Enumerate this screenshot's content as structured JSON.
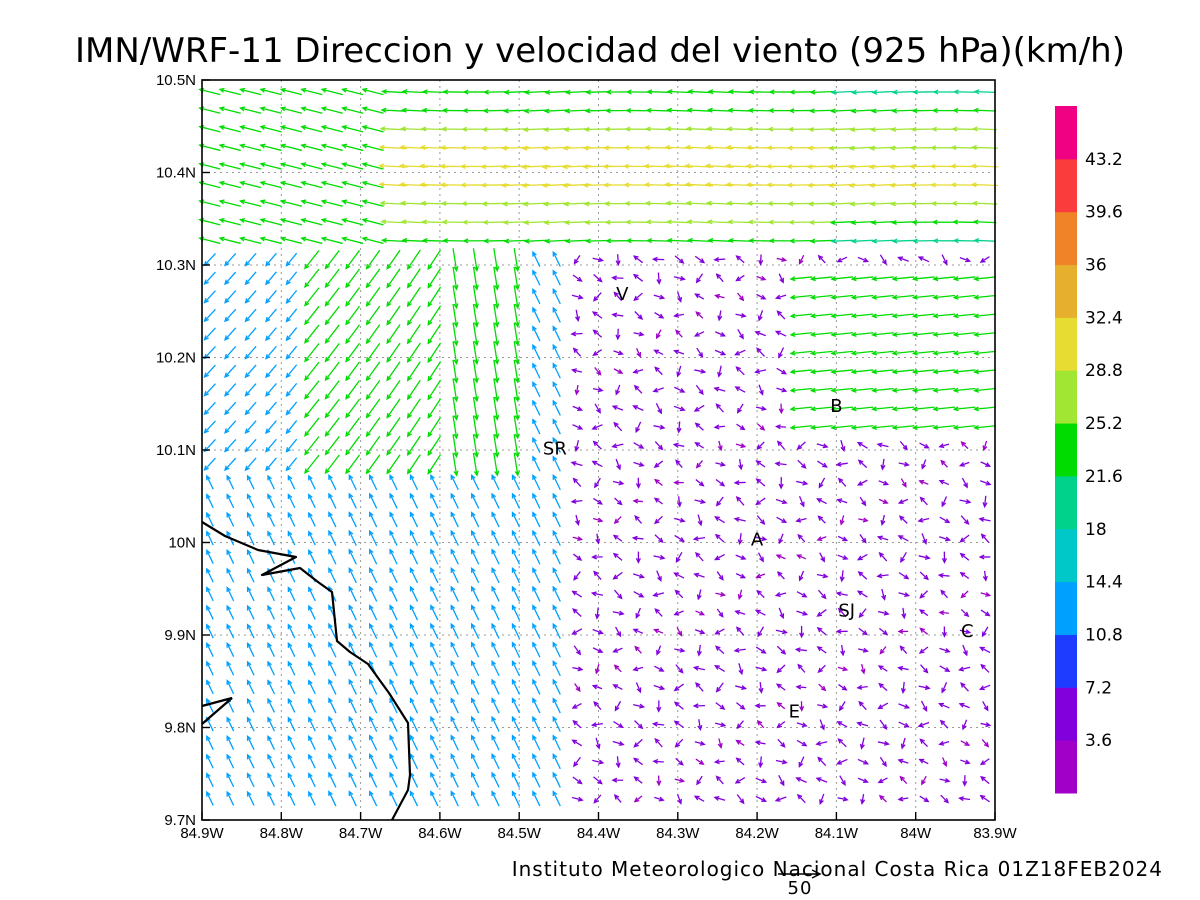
{
  "title": "IMN/WRF-11 Direccion y velocidad del viento (925 hPa)(km/h)",
  "footer": "Instituto Meteorologico Nacional Costa Rica 01Z18FEB2024",
  "reference_vector": {
    "label": "50",
    "speed_kmh": 50
  },
  "map": {
    "lon_range": [
      -84.9,
      -83.9
    ],
    "lat_range": [
      9.7,
      10.5
    ],
    "x_ticks": [
      {
        "lon": -84.9,
        "label": "84.9W"
      },
      {
        "lon": -84.8,
        "label": "84.8W"
      },
      {
        "lon": -84.7,
        "label": "84.7W"
      },
      {
        "lon": -84.6,
        "label": "84.6W"
      },
      {
        "lon": -84.5,
        "label": "84.5W"
      },
      {
        "lon": -84.4,
        "label": "84.4W"
      },
      {
        "lon": -84.3,
        "label": "84.3W"
      },
      {
        "lon": -84.2,
        "label": "84.2W"
      },
      {
        "lon": -84.1,
        "label": "84.1W"
      },
      {
        "lon": -84.0,
        "label": "84W"
      },
      {
        "lon": -83.9,
        "label": "83.9W"
      }
    ],
    "y_ticks": [
      {
        "lat": 9.7,
        "label": "9.7N"
      },
      {
        "lat": 9.8,
        "label": "9.8N"
      },
      {
        "lat": 9.9,
        "label": "9.9N"
      },
      {
        "lat": 10.0,
        "label": "10N"
      },
      {
        "lat": 10.1,
        "label": "10.1N"
      },
      {
        "lat": 10.2,
        "label": "10.2N"
      },
      {
        "lat": 10.3,
        "label": "10.3N"
      },
      {
        "lat": 10.4,
        "label": "10.4N"
      },
      {
        "lat": 10.5,
        "label": "10.5N"
      }
    ],
    "grid": true,
    "coastline_color": "#000000",
    "city_labels": [
      {
        "text": "V",
        "lon": -84.37,
        "lat": 10.262
      },
      {
        "text": "B",
        "lon": -84.1,
        "lat": 10.141
      },
      {
        "text": "SR",
        "lon": -84.455,
        "lat": 10.095
      },
      {
        "text": "A",
        "lon": -84.2,
        "lat": 9.997
      },
      {
        "text": "SJ",
        "lon": -84.087,
        "lat": 9.92
      },
      {
        "text": "C",
        "lon": -83.935,
        "lat": 9.898
      },
      {
        "text": "E",
        "lon": -84.153,
        "lat": 9.811
      }
    ]
  },
  "colorbar": {
    "colors": [
      "#a000c8",
      "#8200dc",
      "#1e3cff",
      "#00a0ff",
      "#00c8c8",
      "#00d28c",
      "#00dc00",
      "#a0e632",
      "#e6dc32",
      "#e6af2d",
      "#f08228",
      "#fa3c3c",
      "#f00082"
    ],
    "labels": [
      "3.6",
      "7.2",
      "10.8",
      "14.4",
      "18",
      "21.6",
      "25.2",
      "28.8",
      "32.4",
      "36",
      "39.6",
      "43.2"
    ]
  }
}
